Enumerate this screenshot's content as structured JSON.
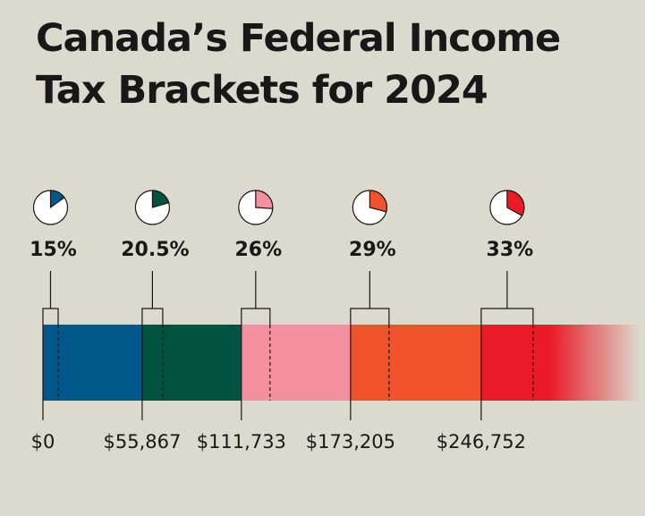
{
  "chart_data": {
    "type": "brackets",
    "title": "Canada’s Federal Income Tax Brackets for 2024",
    "values": [
      15,
      20.5,
      26,
      29,
      33
    ],
    "value_labels": [
      "15%",
      "20.5%",
      "26%",
      "29%",
      "33%"
    ],
    "colors": [
      "#00588a",
      "#00543f",
      "#f490a0",
      "#f0532c",
      "#ea1a27"
    ],
    "xlim": [
      0,
      340000
    ],
    "xticks": [
      {
        "value": 0,
        "label": "$0"
      },
      {
        "value": 55867,
        "label": "$55,867"
      },
      {
        "value": 111733,
        "label": "$111,733"
      },
      {
        "value": 173205,
        "label": "$173,205"
      },
      {
        "value": 246752,
        "label": "$246,752"
      }
    ]
  }
}
